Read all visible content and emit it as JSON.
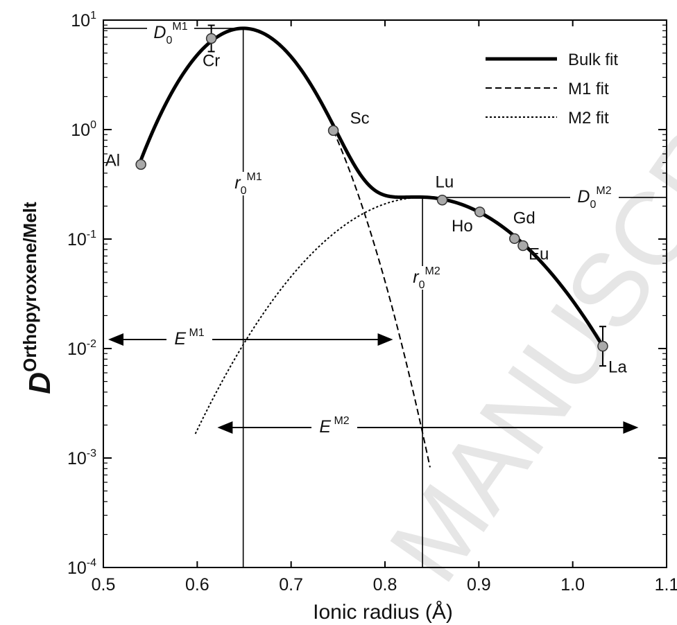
{
  "chart_data": {
    "type": "line",
    "title": "",
    "xlabel": "Ionic radius (Å)",
    "ylabel_main": "D",
    "ylabel_sup": "Orthopyroxene/Melt",
    "xlim": [
      0.5,
      1.1
    ],
    "ylim_log10": [
      -4,
      1
    ],
    "yscale": "log",
    "x_ticks": [
      "0.5",
      "0.6",
      "0.7",
      "0.8",
      "0.9",
      "1.0",
      "1.1"
    ],
    "x_tick_values": [
      0.5,
      0.6,
      0.7,
      0.8,
      0.9,
      1.0,
      1.1
    ],
    "y_ticks": [
      {
        "exp": 1,
        "base": "10",
        "sup": "1"
      },
      {
        "exp": 0,
        "base": "10",
        "sup": "0"
      },
      {
        "exp": -1,
        "base": "10",
        "sup": "-1"
      },
      {
        "exp": -2,
        "base": "10",
        "sup": "-2"
      },
      {
        "exp": -3,
        "base": "10",
        "sup": "-3"
      },
      {
        "exp": -4,
        "base": "10",
        "sup": "-4"
      }
    ],
    "legend": {
      "placement": "top-right",
      "entries": [
        {
          "label": "Bulk fit",
          "style": "solid"
        },
        {
          "label": "M1 fit",
          "style": "dashed"
        },
        {
          "label": "M2 fit",
          "style": "dotted"
        }
      ]
    },
    "points": [
      {
        "label": "Al",
        "x": 0.54,
        "y": 0.48,
        "err": 0
      },
      {
        "label": "Cr",
        "x": 0.615,
        "y": 6.8,
        "err": 0.12
      },
      {
        "label": "Sc",
        "x": 0.745,
        "y": 0.98,
        "err": 0
      },
      {
        "label": "Lu",
        "x": 0.861,
        "y": 0.227,
        "err": 0
      },
      {
        "label": "Ho",
        "x": 0.901,
        "y": 0.177,
        "err": 0
      },
      {
        "label": "Gd",
        "x": 0.938,
        "y": 0.101,
        "err": 0
      },
      {
        "label": "Eu",
        "x": 0.947,
        "y": 0.087,
        "err": 0
      },
      {
        "label": "La",
        "x": 1.032,
        "y": 0.0105,
        "err": 0.18
      }
    ],
    "series": [
      {
        "name": "Bulk fit",
        "style": "solid",
        "x_range": [
          0.54,
          1.032
        ]
      },
      {
        "name": "M1 fit",
        "style": "dashed",
        "x_range": [
          0.745,
          0.848
        ]
      },
      {
        "name": "M2 fit",
        "style": "dotted",
        "x_range": [
          0.598,
          0.84
        ]
      }
    ],
    "lattice_strain_params": {
      "M1": {
        "r0": 0.649,
        "D0": 8.4,
        "E_span": [
          0.5,
          0.81
        ]
      },
      "M2": {
        "r0": 0.84,
        "D0": 0.24,
        "E_span": [
          0.62,
          1.07
        ]
      }
    },
    "annotations": {
      "D0_M1": {
        "base": "D",
        "sub": "0",
        "sup": "M1"
      },
      "D0_M2": {
        "base": "D",
        "sub": "0",
        "sup": "M2"
      },
      "r0_M1": {
        "base": "r",
        "sub": "0",
        "sup": "M1"
      },
      "r0_M2": {
        "base": "r",
        "sub": "0",
        "sup": "M2"
      },
      "E_M1": {
        "base": "E",
        "sup": "M1"
      },
      "E_M2": {
        "base": "E",
        "sup": "M2"
      }
    },
    "watermark": "MANUSCRIPT"
  }
}
